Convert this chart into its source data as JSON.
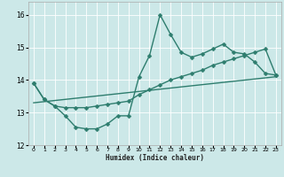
{
  "xlabel": "Humidex (Indice chaleur)",
  "bg_color": "#cce8e8",
  "line_color": "#2e7d6e",
  "grid_color": "#ffffff",
  "xlim": [
    -0.5,
    23.5
  ],
  "ylim": [
    12.0,
    16.4
  ],
  "yticks": [
    12,
    13,
    14,
    15,
    16
  ],
  "xticks": [
    0,
    1,
    2,
    3,
    4,
    5,
    6,
    7,
    8,
    9,
    10,
    11,
    12,
    13,
    14,
    15,
    16,
    17,
    18,
    19,
    20,
    21,
    22,
    23
  ],
  "series1_x": [
    0,
    1,
    2,
    3,
    4,
    5,
    6,
    7,
    8,
    9,
    10,
    11,
    12,
    13,
    14,
    15,
    16,
    17,
    18,
    19,
    20,
    21,
    22,
    23
  ],
  "series1_y": [
    13.9,
    13.4,
    13.2,
    12.9,
    12.55,
    12.5,
    12.5,
    12.65,
    12.9,
    12.9,
    14.1,
    14.75,
    16.0,
    15.4,
    14.85,
    14.7,
    14.8,
    14.95,
    15.1,
    14.85,
    14.8,
    14.55,
    14.2,
    14.15
  ],
  "series2_x": [
    0,
    1,
    2,
    3,
    4,
    5,
    6,
    7,
    8,
    9,
    10,
    11,
    12,
    13,
    14,
    15,
    16,
    17,
    18,
    19,
    20,
    21,
    22,
    23
  ],
  "series2_y": [
    13.9,
    13.4,
    13.2,
    13.15,
    13.15,
    13.15,
    13.2,
    13.25,
    13.3,
    13.35,
    13.55,
    13.7,
    13.85,
    14.0,
    14.1,
    14.2,
    14.3,
    14.45,
    14.55,
    14.65,
    14.75,
    14.85,
    14.95,
    14.15
  ],
  "series3_x": [
    0,
    23
  ],
  "series3_y": [
    13.3,
    14.1
  ],
  "marker_size": 2.5,
  "line_width": 1.0
}
